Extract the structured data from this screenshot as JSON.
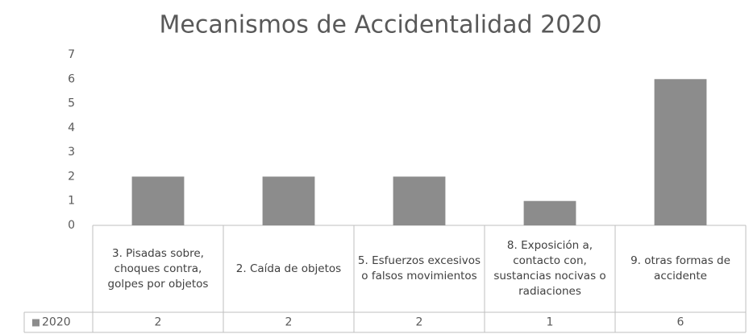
{
  "chart_data": {
    "type": "bar",
    "title": "Mecanismos de Accidentalidad 2020",
    "categories": [
      "3. Pisadas sobre, choques contra, golpes por objetos",
      "2. Caída de objetos",
      "5. Esfuerzos excesivos o falsos movimientos",
      "8. Exposición a, contacto con, sustancias nocivas o radiaciones",
      "9. otras formas de accidente"
    ],
    "series": [
      {
        "name": "2020",
        "color": "#8c8c8c",
        "values": [
          2,
          2,
          2,
          1,
          6
        ]
      }
    ],
    "ylim": [
      0,
      7
    ],
    "yticks": [
      0,
      1,
      2,
      3,
      4,
      5,
      6,
      7
    ],
    "grid": false,
    "legend": "data-table"
  }
}
